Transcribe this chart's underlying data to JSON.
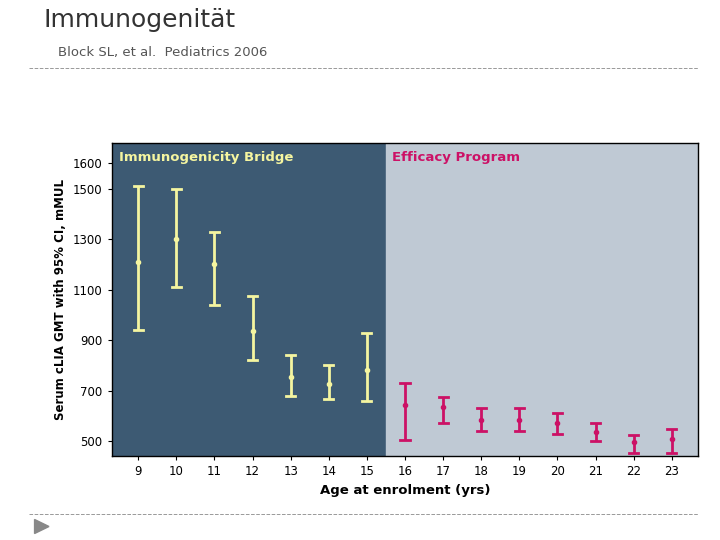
{
  "title": "Immunogenität",
  "subtitle": "Block SL, et al.  Pediatrics 2006",
  "xlabel": "Age at enrolment (yrs)",
  "ylabel": "Serum cLIA GMT with 95% CI, mMUL",
  "ylim_low": 440,
  "ylim_high": 1680,
  "yticks": [
    500,
    700,
    900,
    1100,
    1300,
    1500,
    1600
  ],
  "bridge_label": "Immunogenicity Bridge",
  "efficacy_label": "Efficacy Program",
  "bridge_bg": "#3d5a73",
  "efficacy_bg": "#bfc9d4",
  "bridge_color": "#f5f5a0",
  "efficacy_color": "#cc1166",
  "bridge_ages": [
    9,
    10,
    11,
    12,
    13,
    14,
    15
  ],
  "bridge_gmt": [
    1210,
    1300,
    1200,
    935,
    755,
    725,
    780
  ],
  "bridge_lower": [
    940,
    1110,
    1040,
    820,
    680,
    665,
    660
  ],
  "bridge_upper": [
    1510,
    1500,
    1330,
    1075,
    840,
    800,
    930
  ],
  "efficacy_ages": [
    16,
    17,
    18,
    19,
    20,
    21,
    22,
    23
  ],
  "efficacy_gmt": [
    645,
    635,
    585,
    585,
    570,
    535,
    498,
    508
  ],
  "efficacy_lower": [
    505,
    570,
    540,
    540,
    530,
    500,
    455,
    455
  ],
  "efficacy_upper": [
    730,
    675,
    630,
    630,
    610,
    570,
    525,
    550
  ],
  "background_color": "#ffffff",
  "fig_width": 7.2,
  "fig_height": 5.4,
  "dpi": 100
}
